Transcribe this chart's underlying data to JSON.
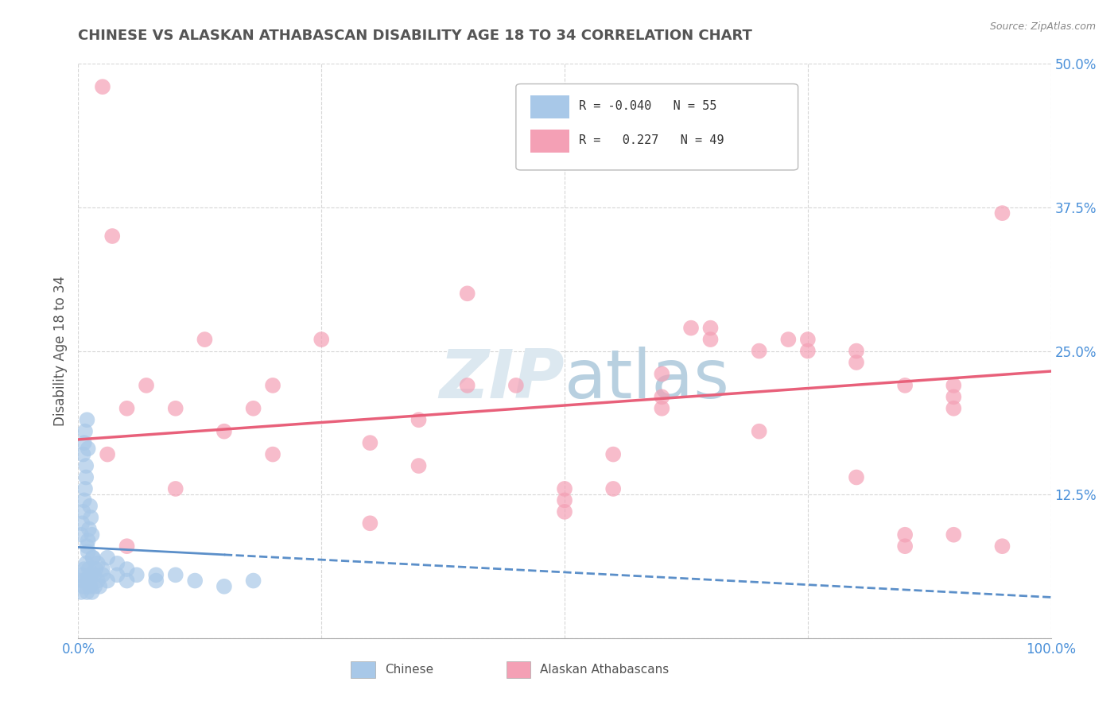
{
  "title": "CHINESE VS ALASKAN ATHABASCAN DISABILITY AGE 18 TO 34 CORRELATION CHART",
  "source": "Source: ZipAtlas.com",
  "ylabel": "Disability Age 18 to 34",
  "xlim": [
    0.0,
    100.0
  ],
  "ylim": [
    0.0,
    50.0
  ],
  "xticks": [
    0.0,
    25.0,
    50.0,
    75.0,
    100.0
  ],
  "xtick_labels": [
    "0.0%",
    "",
    "",
    "",
    "100.0%"
  ],
  "yticks": [
    0.0,
    12.5,
    25.0,
    37.5,
    50.0
  ],
  "ytick_labels": [
    "",
    "12.5%",
    "25.0%",
    "37.5%",
    "50.0%"
  ],
  "chinese_color": "#a8c8e8",
  "athabascan_color": "#f4a0b5",
  "chinese_line_color": "#5b8fc9",
  "athabascan_line_color": "#e8607a",
  "background_color": "#ffffff",
  "grid_color": "#cccccc",
  "title_color": "#555555",
  "watermark_color": "#dce8f0",
  "legend_R1": "-0.040",
  "legend_N1": "55",
  "legend_R2": "0.227",
  "legend_N2": "49",
  "chinese_x": [
    0.2,
    0.3,
    0.4,
    0.5,
    0.6,
    0.7,
    0.8,
    0.9,
    1.0,
    1.1,
    1.2,
    1.3,
    1.4,
    1.5,
    1.6,
    1.7,
    1.8,
    2.0,
    2.2,
    2.5,
    3.0,
    4.0,
    5.0,
    6.0,
    8.0,
    10.0,
    12.0,
    15.0,
    18.0,
    0.3,
    0.4,
    0.5,
    0.6,
    0.7,
    0.8,
    0.9,
    1.0,
    1.0,
    1.1,
    1.2,
    1.3,
    1.4,
    0.5,
    0.6,
    0.7,
    0.8,
    0.9,
    1.0,
    1.5,
    2.0,
    2.5,
    3.0,
    4.0,
    5.0,
    8.0
  ],
  "chinese_y": [
    5.0,
    4.0,
    5.5,
    4.5,
    6.0,
    5.0,
    6.5,
    4.0,
    5.0,
    6.0,
    4.5,
    5.5,
    4.0,
    7.0,
    5.5,
    4.5,
    6.0,
    5.0,
    4.5,
    5.5,
    5.0,
    5.5,
    5.0,
    5.5,
    5.0,
    5.5,
    5.0,
    4.5,
    5.0,
    9.0,
    10.0,
    11.0,
    12.0,
    13.0,
    14.0,
    8.0,
    7.5,
    8.5,
    9.5,
    11.5,
    10.5,
    9.0,
    16.0,
    17.0,
    18.0,
    15.0,
    19.0,
    16.5,
    7.0,
    6.5,
    6.0,
    7.0,
    6.5,
    6.0,
    5.5
  ],
  "athabascan_x": [
    2.5,
    3.5,
    5.0,
    7.0,
    10.0,
    13.0,
    18.0,
    25.0,
    30.0,
    35.0,
    40.0,
    45.0,
    50.0,
    55.0,
    60.0,
    63.0,
    65.0,
    70.0,
    73.0,
    75.0,
    80.0,
    85.0,
    90.0,
    95.0,
    15.0,
    20.0,
    30.0,
    40.0,
    50.0,
    60.0,
    70.0,
    80.0,
    90.0,
    5.0,
    20.0,
    35.0,
    50.0,
    65.0,
    75.0,
    80.0,
    85.0,
    90.0,
    95.0,
    3.0,
    10.0,
    55.0,
    60.0,
    85.0,
    90.0
  ],
  "athabascan_y": [
    48.0,
    35.0,
    20.0,
    22.0,
    20.0,
    26.0,
    20.0,
    26.0,
    17.0,
    19.0,
    30.0,
    22.0,
    13.0,
    16.0,
    20.0,
    27.0,
    26.0,
    18.0,
    26.0,
    26.0,
    24.0,
    8.0,
    22.0,
    37.0,
    18.0,
    16.0,
    10.0,
    22.0,
    12.0,
    23.0,
    25.0,
    14.0,
    21.0,
    8.0,
    22.0,
    15.0,
    11.0,
    27.0,
    25.0,
    25.0,
    9.0,
    9.0,
    8.0,
    16.0,
    13.0,
    13.0,
    21.0,
    22.0,
    20.0
  ]
}
